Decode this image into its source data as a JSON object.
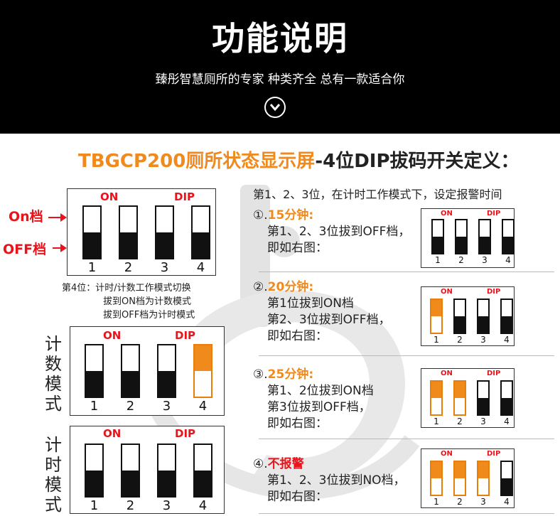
{
  "header": {
    "title": "功能说明",
    "subtitle": "臻彤智慧厕所的专家  种类齐全  总有一款适合你",
    "chevron_icon": "chevron-down-icon"
  },
  "main_title": {
    "part1": "TBGCP200厕所状态显示屏",
    "part2": "-4位DIP拔码开关定义："
  },
  "colors": {
    "orange": "#f08a1c",
    "red": "#e8141c",
    "black": "#111111"
  },
  "left": {
    "on_label": "On档",
    "off_label": "OFF档",
    "legend_diagram": {
      "on": "ON",
      "dip": "DIP",
      "numbers": [
        "1",
        "2",
        "3",
        "4"
      ],
      "switch_states": [
        "off",
        "off",
        "off",
        "off"
      ]
    },
    "note": {
      "line1": "第4位：计时/计数工作模式切换",
      "line2": "拔到ON档为计数模式",
      "line3": "拔到OFF档为计时模式"
    },
    "count_mode": {
      "label": [
        "计",
        "数",
        "模",
        "式"
      ],
      "on": "ON",
      "dip": "DIP",
      "numbers": [
        "1",
        "2",
        "3",
        "4"
      ],
      "switch_states": [
        "off",
        "off",
        "off",
        "on"
      ]
    },
    "timer_mode": {
      "label": [
        "计",
        "时",
        "模",
        "式"
      ],
      "on": "ON",
      "dip": "DIP",
      "numbers": [
        "1",
        "2",
        "3",
        "4"
      ],
      "switch_states": [
        "off",
        "off",
        "off",
        "off"
      ]
    }
  },
  "right": {
    "intro": "第1、2、3位，在计时工作模式下，设定报警时间",
    "items": [
      {
        "num": "①.",
        "title": "15分钟:",
        "lines": [
          "第1、2、3位拔到OFF档，",
          "即如右图："
        ],
        "on": "ON",
        "dip": "DIP",
        "numbers": [
          "1",
          "2",
          "3",
          "4"
        ],
        "switch_states": [
          "off",
          "off",
          "off",
          "off"
        ]
      },
      {
        "num": "②.",
        "title": "20分钟:",
        "lines": [
          "第1位拔到ON档",
          "第2、3位拔到OFF档，",
          "即如右图："
        ],
        "on": "ON",
        "dip": "DIP",
        "numbers": [
          "1",
          "2",
          "3",
          "4"
        ],
        "switch_states": [
          "on",
          "off",
          "off",
          "off"
        ]
      },
      {
        "num": "③.",
        "title": "25分钟:",
        "lines": [
          "第1、2位拔到ON档",
          "第3位拔到OFF档，",
          "即如右图："
        ],
        "on": "ON",
        "dip": "DIP",
        "numbers": [
          "1",
          "2",
          "3",
          "4"
        ],
        "switch_states": [
          "on",
          "on",
          "off",
          "off"
        ]
      },
      {
        "num": "④.",
        "title": "不报警",
        "lines": [
          "第1、2、3位拔到NO档，",
          "即如右图："
        ],
        "on": "ON",
        "dip": "DIP",
        "numbers": [
          "1",
          "2",
          "3",
          "4"
        ],
        "switch_states": [
          "on",
          "on",
          "on",
          "off"
        ]
      }
    ]
  }
}
